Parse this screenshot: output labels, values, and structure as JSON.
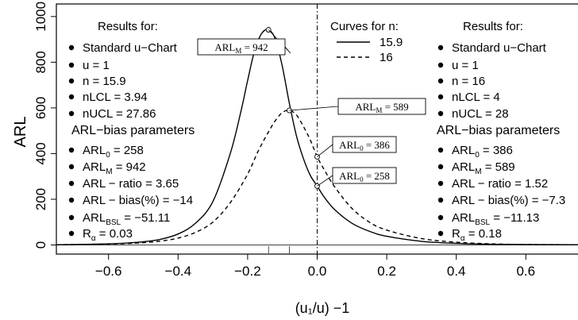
{
  "chart_data": {
    "type": "line",
    "ylabel": "ARL",
    "xlabel": "(u₁/u) −1",
    "xlim": [
      -0.75,
      0.75
    ],
    "ylim": [
      0,
      1000
    ],
    "x_ticks": [
      "−0.6",
      "−0.4",
      "−0.2",
      "0.0",
      "0.2",
      "0.4",
      "0.6"
    ],
    "x_tick_values": [
      -0.6,
      -0.4,
      -0.2,
      0.0,
      0.2,
      0.4,
      0.6
    ],
    "y_ticks": [
      "0",
      "200",
      "400",
      "600",
      "800",
      "1000"
    ],
    "y_tick_values": [
      0,
      200,
      400,
      600,
      800,
      1000
    ],
    "series": [
      {
        "name": "15.9",
        "line_style": "solid",
        "x": [
          -0.75,
          -0.7,
          -0.65,
          -0.6,
          -0.55,
          -0.5,
          -0.45,
          -0.4,
          -0.35,
          -0.3,
          -0.25,
          -0.22,
          -0.2,
          -0.18,
          -0.16,
          -0.14,
          -0.12,
          -0.1,
          -0.08,
          -0.06,
          -0.04,
          -0.02,
          0.0,
          0.02,
          0.05,
          0.1,
          0.15,
          0.2,
          0.3,
          0.4,
          0.5,
          0.6,
          0.75
        ],
        "values": [
          1,
          2,
          3,
          5,
          8,
          14,
          25,
          48,
          95,
          190,
          400,
          580,
          720,
          850,
          925,
          942,
          900,
          780,
          620,
          480,
          380,
          305,
          258,
          210,
          155,
          95,
          60,
          38,
          16,
          7,
          3,
          2,
          1
        ]
      },
      {
        "name": "16",
        "line_style": "dashed",
        "x": [
          -0.75,
          -0.7,
          -0.65,
          -0.6,
          -0.55,
          -0.5,
          -0.45,
          -0.4,
          -0.35,
          -0.3,
          -0.25,
          -0.2,
          -0.17,
          -0.14,
          -0.12,
          -0.1,
          -0.08,
          -0.06,
          -0.04,
          -0.02,
          0.0,
          0.02,
          0.05,
          0.1,
          0.15,
          0.2,
          0.3,
          0.4,
          0.5,
          0.6,
          0.75
        ],
        "values": [
          1,
          2,
          3,
          4,
          6,
          10,
          17,
          30,
          55,
          100,
          185,
          310,
          410,
          495,
          545,
          580,
          589,
          570,
          520,
          460,
          386,
          330,
          255,
          160,
          100,
          65,
          28,
          12,
          5,
          2,
          1
        ]
      }
    ],
    "annotations": [
      {
        "base": "ARL",
        "sub": "M",
        "value": "942",
        "x": -0.14,
        "y": 942
      },
      {
        "base": "ARL",
        "sub": "M",
        "value": "589",
        "x": -0.08,
        "y": 589
      },
      {
        "base": "ARL",
        "sub": "0",
        "value": "386",
        "x": 0.0,
        "y": 386
      },
      {
        "base": "ARL",
        "sub": "0",
        "value": "258",
        "x": 0.0,
        "y": 258
      }
    ],
    "rug_x": [
      -0.14,
      -0.08
    ],
    "vertical_line_x": 0.0,
    "legend": {
      "title": "Curves for n:",
      "entries": [
        {
          "label": "15.9",
          "line_style": "solid"
        },
        {
          "label": "16",
          "line_style": "dashed"
        }
      ]
    },
    "panels": [
      {
        "results_title": "Results for:",
        "chart_name": "Standard u−Chart",
        "params": [
          {
            "base": "u",
            "sub": "",
            "value": "1"
          },
          {
            "base": "n",
            "sub": "",
            "value": "15.9"
          },
          {
            "base": "nLCL",
            "sub": "",
            "value": "3.94"
          },
          {
            "base": "nUCL",
            "sub": "",
            "value": "27.86"
          }
        ],
        "bias_title": "ARL−bias parameters",
        "bias_params": [
          {
            "base": "ARL",
            "sub": "0",
            "value": "258"
          },
          {
            "base": "ARL",
            "sub": "M",
            "value": "942"
          },
          {
            "base": "ARL − ratio",
            "sub": "",
            "value": "3.65"
          },
          {
            "base": "ARL − bias(%)",
            "sub": "",
            "value": "−14"
          },
          {
            "base": "ARL",
            "sub": "BSL",
            "value": "−51.11"
          },
          {
            "base": "R",
            "sub": "α",
            "value": "0.03"
          }
        ]
      },
      {
        "results_title": "Results for:",
        "chart_name": "Standard u−Chart",
        "params": [
          {
            "base": "u",
            "sub": "",
            "value": "1"
          },
          {
            "base": "n",
            "sub": "",
            "value": "16"
          },
          {
            "base": "nLCL",
            "sub": "",
            "value": "4"
          },
          {
            "base": "nUCL",
            "sub": "",
            "value": "28"
          }
        ],
        "bias_title": "ARL−bias parameters",
        "bias_params": [
          {
            "base": "ARL",
            "sub": "0",
            "value": "386"
          },
          {
            "base": "ARL",
            "sub": "M",
            "value": "589"
          },
          {
            "base": "ARL − ratio",
            "sub": "",
            "value": "1.52"
          },
          {
            "base": "ARL − bias(%)",
            "sub": "",
            "value": "−7.3"
          },
          {
            "base": "ARL",
            "sub": "BSL",
            "value": "−11.13"
          },
          {
            "base": "R",
            "sub": "α",
            "value": "0.18"
          }
        ]
      }
    ]
  }
}
